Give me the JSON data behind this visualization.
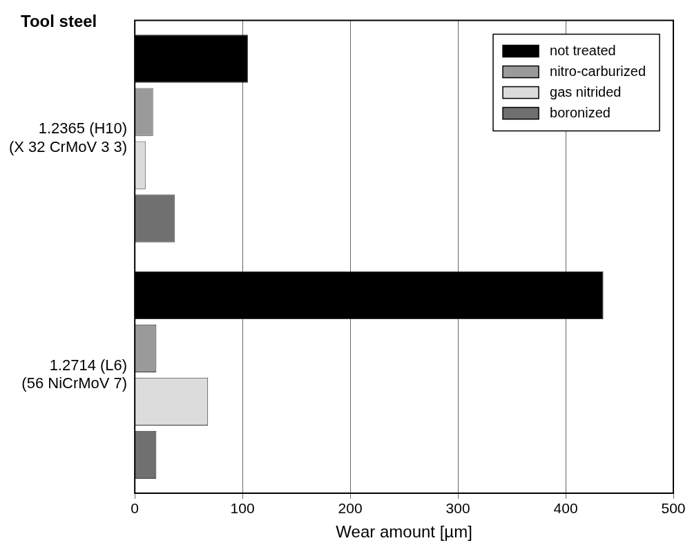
{
  "chart_data": {
    "type": "bar",
    "orientation": "horizontal",
    "ylabel": "Tool steel",
    "xlabel": "Wear amount [µm]",
    "categories": [
      "1.2365 (H10)\n(X 32 CrMoV 3 3)",
      "1.2714 (L6)\n(56 NiCrMoV 7)"
    ],
    "series": [
      {
        "name": "not treated",
        "color": "#000000",
        "values": [
          105,
          435
        ]
      },
      {
        "name": "nitro-carburized",
        "color": "#9a9a9a",
        "values": [
          17,
          20
        ]
      },
      {
        "name": "gas nitrided",
        "color": "#dcdcdc",
        "values": [
          10,
          68
        ]
      },
      {
        "name": "boronized",
        "color": "#707070",
        "values": [
          37,
          20
        ]
      }
    ],
    "xlim": [
      0,
      500
    ],
    "xticks": [
      0,
      100,
      200,
      300,
      400,
      500
    ],
    "grid": "x",
    "legend": "top right"
  }
}
